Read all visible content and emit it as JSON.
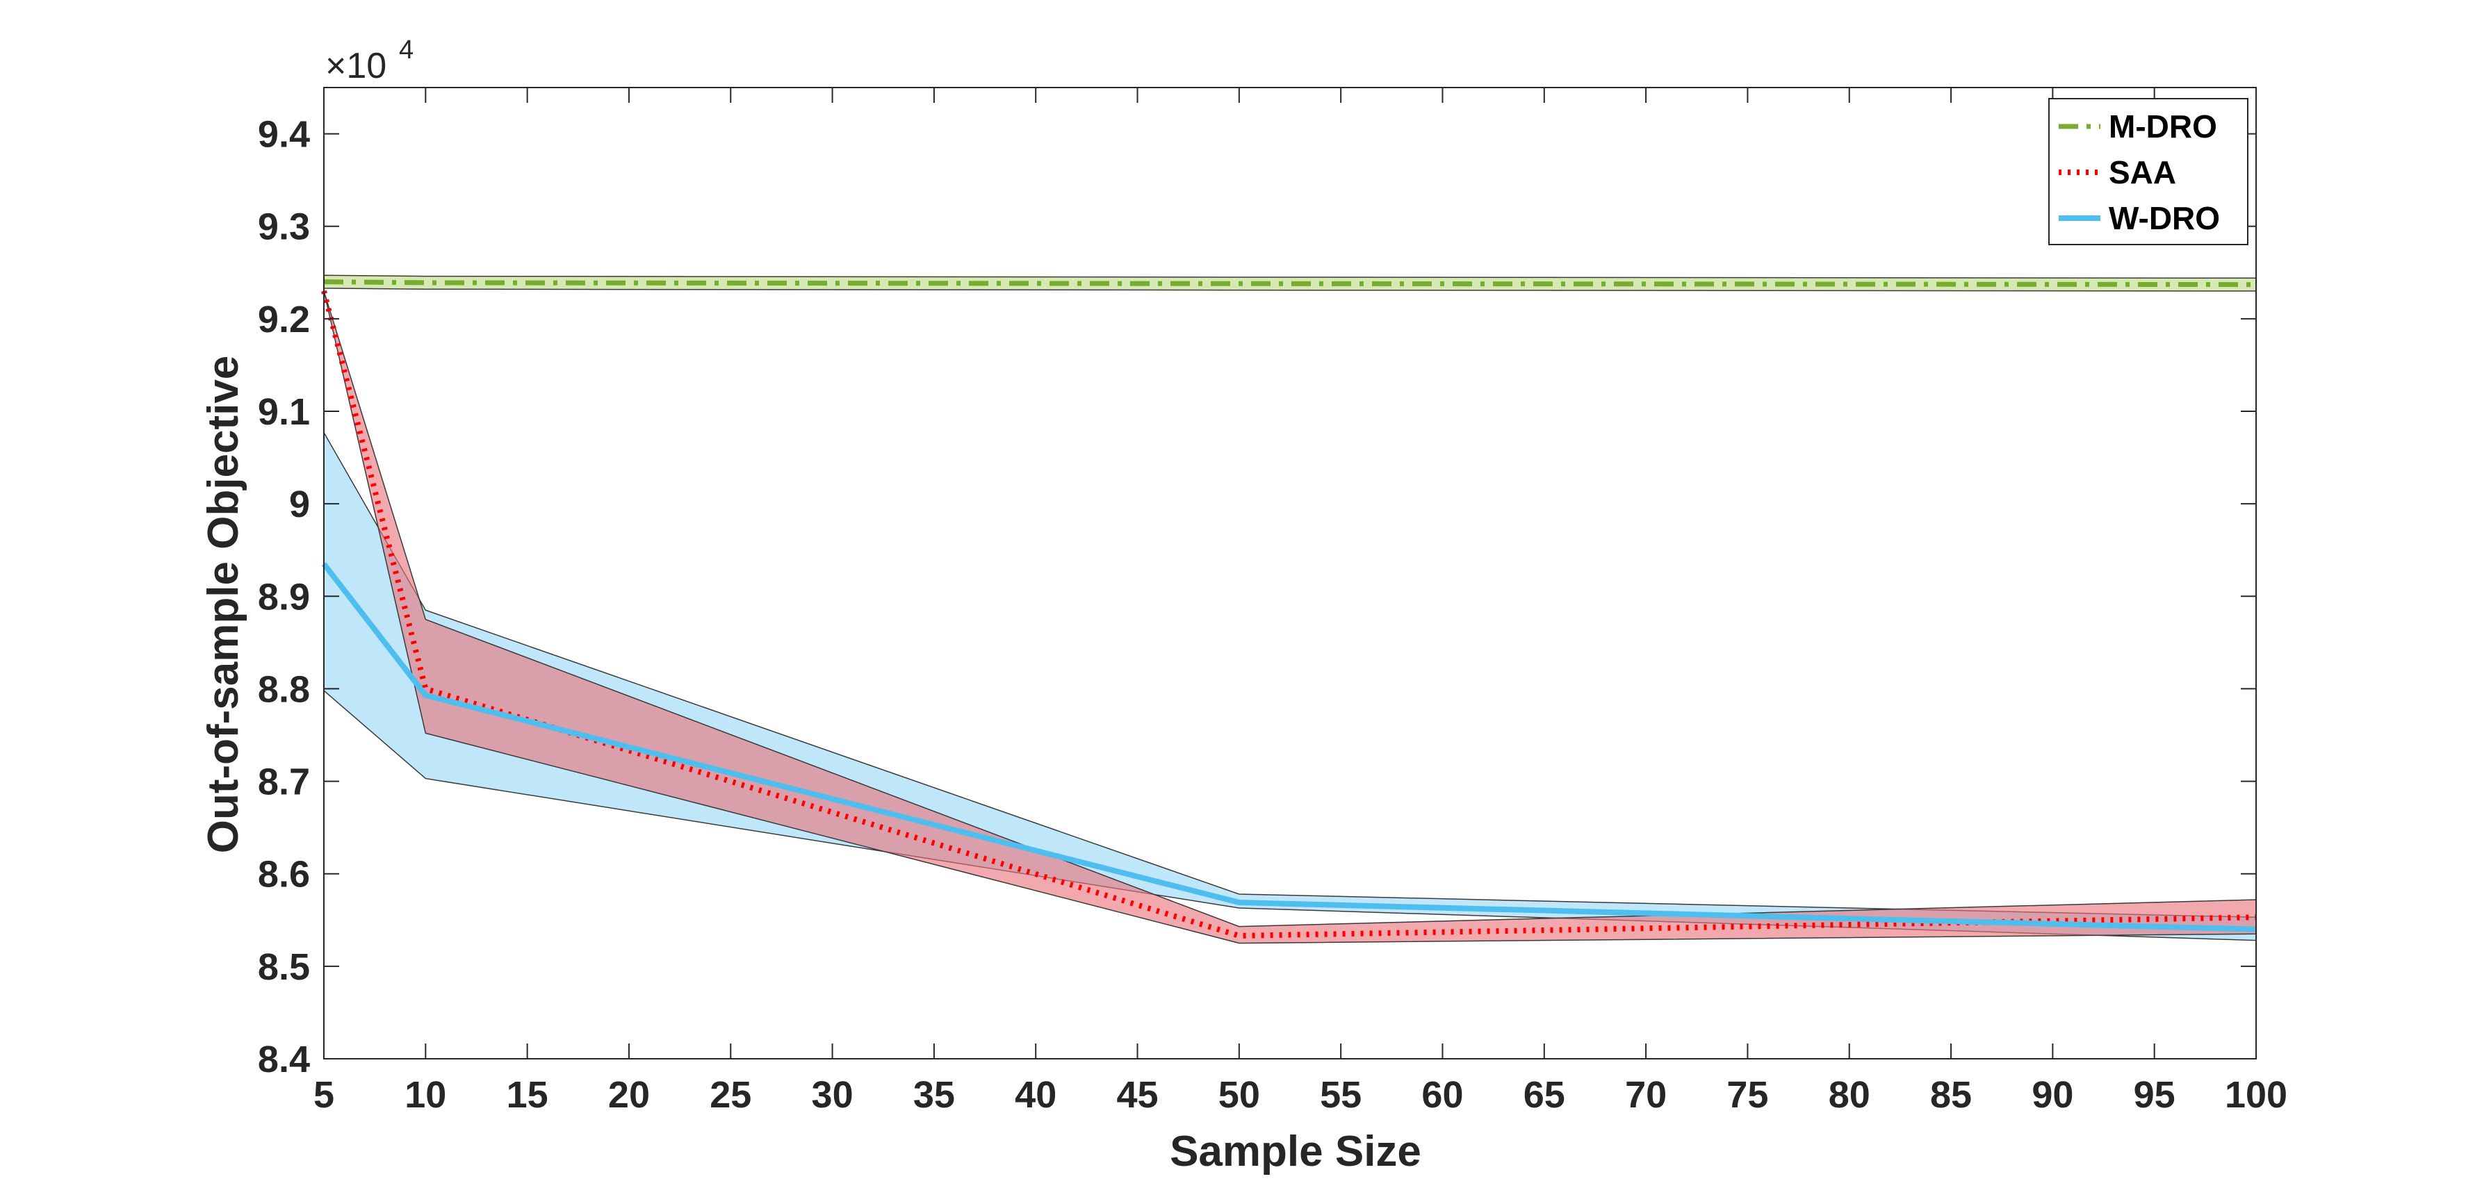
{
  "chart_data": {
    "type": "line",
    "xlabel": "Sample Size",
    "ylabel": "Out-of-sample Objective",
    "y_multiplier": {
      "base": "×10",
      "exponent": "4"
    },
    "xlim": [
      5,
      100
    ],
    "ylim": [
      8.4,
      9.45
    ],
    "xticks": [
      5,
      10,
      15,
      20,
      25,
      30,
      35,
      40,
      45,
      50,
      55,
      60,
      65,
      70,
      75,
      80,
      85,
      90,
      95,
      100
    ],
    "yticks": [
      8.4,
      8.5,
      8.6,
      8.7,
      8.8,
      8.9,
      9.0,
      9.1,
      9.2,
      9.3,
      9.4
    ],
    "ytick_labels": [
      "8.4",
      "8.5",
      "8.6",
      "8.7",
      "8.8",
      "8.9",
      "9",
      "9.1",
      "9.2",
      "9.3",
      "9.4"
    ],
    "grid": false,
    "legend_position": "top-right",
    "x": [
      5,
      10,
      50,
      100
    ],
    "series": [
      {
        "name": "M-DRO",
        "color": "#77AC30",
        "style": "dashdot",
        "band_color": "#C9E29A",
        "values": [
          9.24,
          9.239,
          9.238,
          9.237
        ],
        "lower": [
          9.233,
          9.232,
          9.231,
          9.23
        ],
        "upper": [
          9.247,
          9.246,
          9.245,
          9.244
        ]
      },
      {
        "name": "SAA",
        "color": "#FF0000",
        "style": "dotted",
        "band_color": "#E8747C",
        "values": [
          9.23,
          8.8,
          8.533,
          8.553
        ],
        "lower": [
          9.23,
          8.752,
          8.525,
          8.535
        ],
        "upper": [
          9.23,
          8.875,
          8.543,
          8.572
        ]
      },
      {
        "name": "W-DRO",
        "color": "#4DBEEE",
        "style": "solid",
        "band_color": "#A9DDF7",
        "values": [
          8.935,
          8.793,
          8.569,
          8.54
        ],
        "lower": [
          8.798,
          8.703,
          8.563,
          8.528
        ],
        "upper": [
          9.077,
          8.885,
          8.578,
          8.553
        ]
      }
    ]
  }
}
